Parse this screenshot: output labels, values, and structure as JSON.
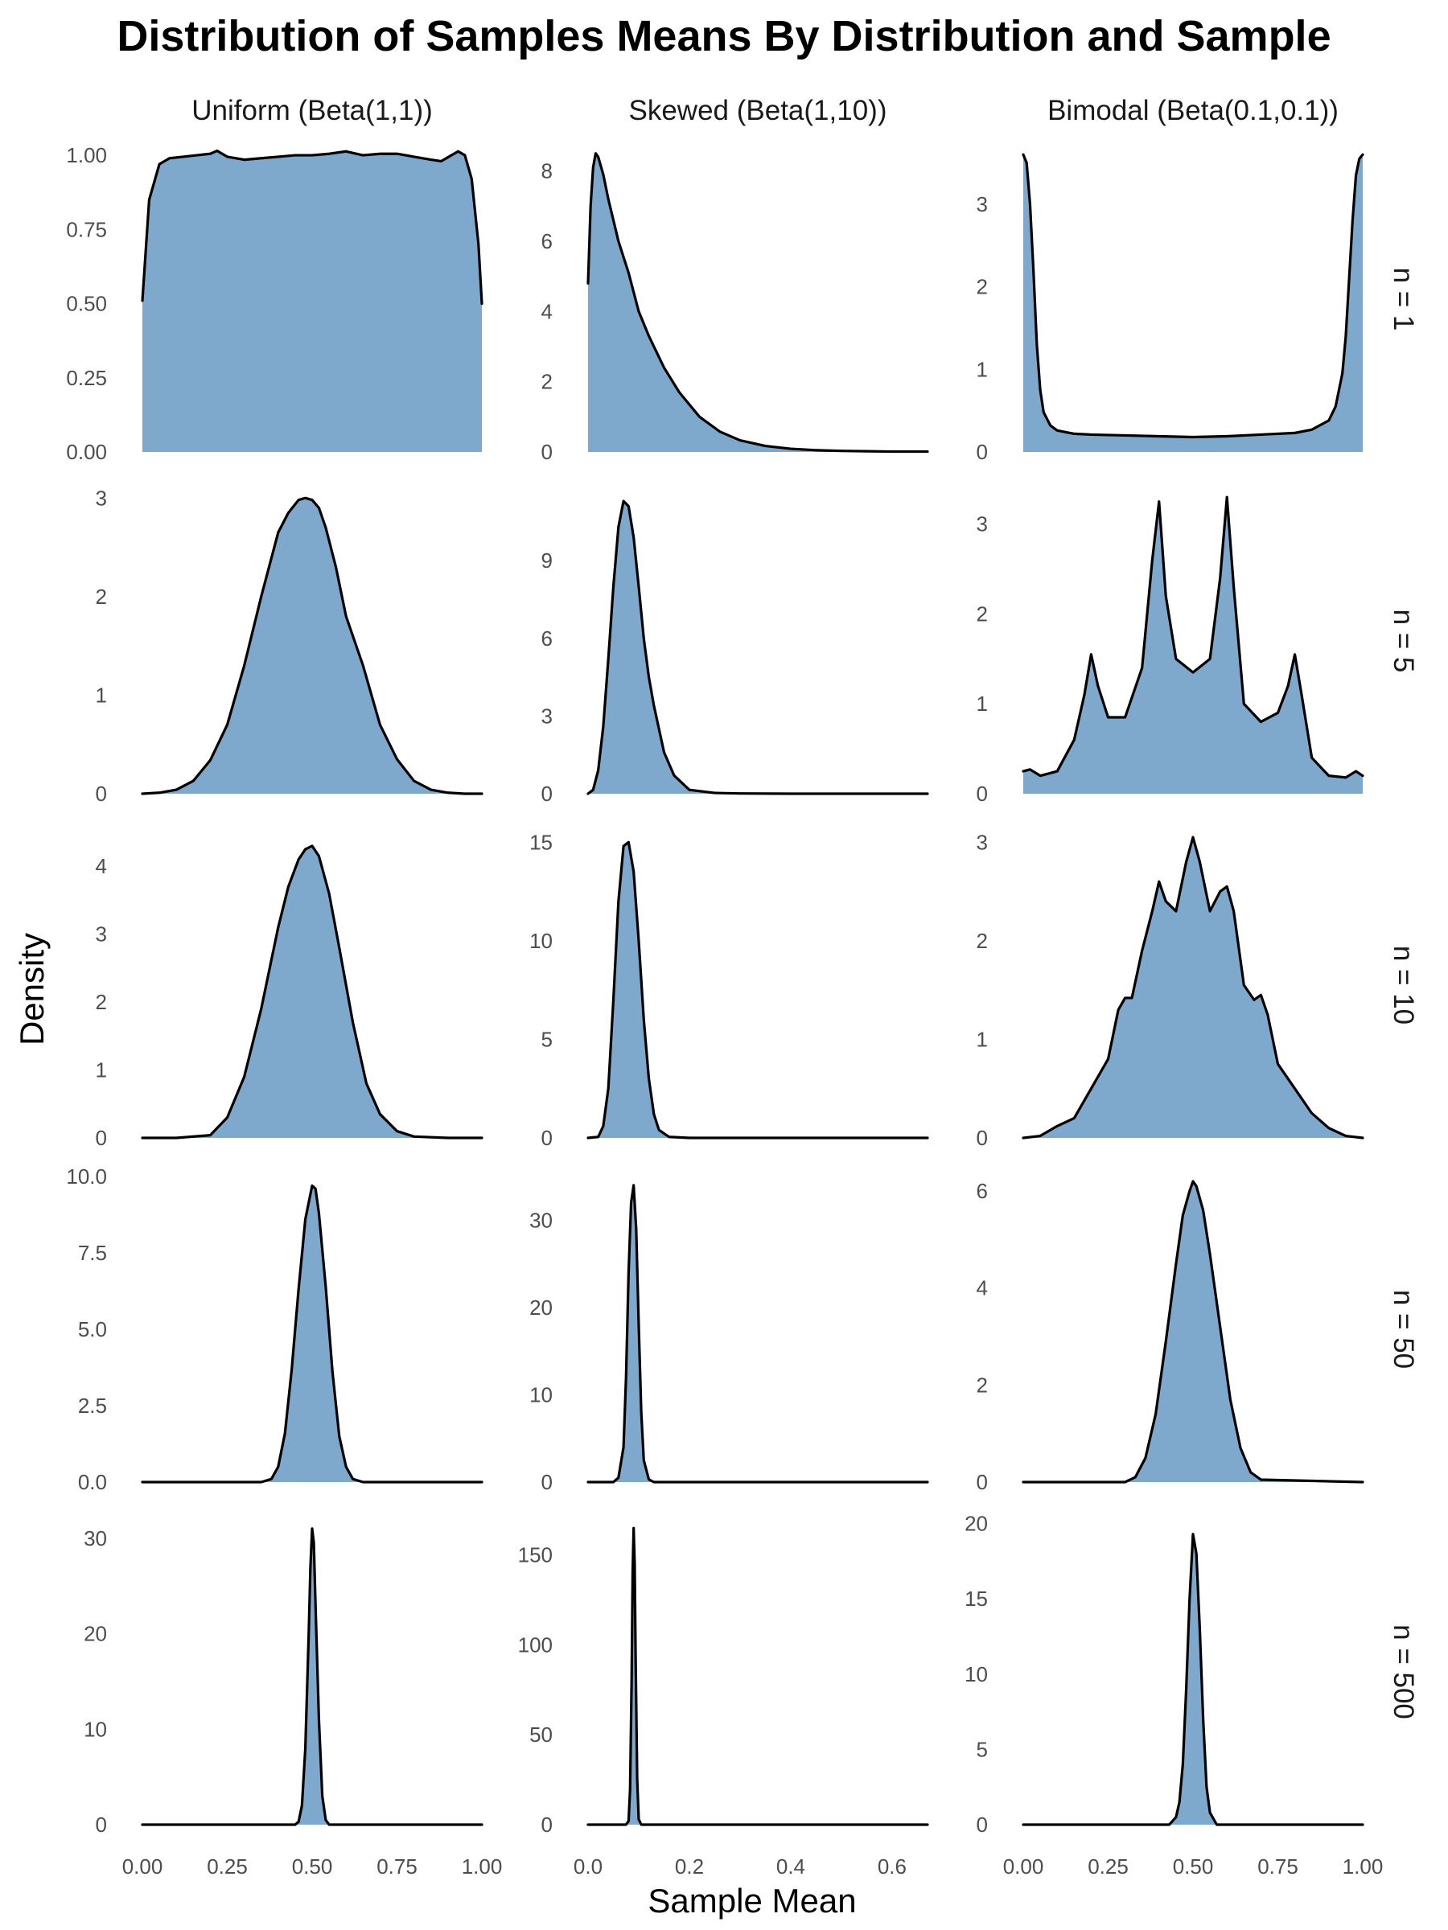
{
  "chart_data": {
    "type": "area",
    "title": "Distribution of Samples Means By Distribution and Sample",
    "xlabel": "Sample Mean",
    "ylabel": "Density",
    "fill_color": "#7EA8CC",
    "line_color": "#000000",
    "grid": false,
    "columns": [
      "Uniform (Beta(1,1))",
      "Skewed (Beta(1,10))",
      "Bimodal (Beta(0.1,0.1))"
    ],
    "rows": [
      "n = 1",
      "n = 5",
      "n = 10",
      "n = 50",
      "n = 500"
    ],
    "x_axes": [
      {
        "range": [
          0,
          1
        ],
        "ticks": [
          0,
          0.25,
          0.5,
          0.75,
          1
        ],
        "tick_labels": [
          "0.00",
          "0.25",
          "0.50",
          "0.75",
          "1.00"
        ]
      },
      {
        "range": [
          0,
          0.67
        ],
        "ticks": [
          0,
          0.2,
          0.4,
          0.6
        ],
        "tick_labels": [
          "0.0",
          "0.2",
          "0.4",
          "0.6"
        ]
      },
      {
        "range": [
          0,
          1
        ],
        "ticks": [
          0,
          0.25,
          0.5,
          0.75,
          1
        ],
        "tick_labels": [
          "0.00",
          "0.25",
          "0.50",
          "0.75",
          "1.00"
        ]
      }
    ],
    "panels": [
      {
        "row": 0,
        "col": 0,
        "ylim": [
          0,
          1.03
        ],
        "y_ticks": [
          0,
          0.25,
          0.5,
          0.75,
          1
        ],
        "y_tick_labels": [
          "0.00",
          "0.25",
          "0.50",
          "0.75",
          "1.00"
        ],
        "x": [
          0,
          0.02,
          0.05,
          0.08,
          0.12,
          0.16,
          0.2,
          0.22,
          0.25,
          0.3,
          0.35,
          0.4,
          0.45,
          0.5,
          0.55,
          0.6,
          0.65,
          0.7,
          0.75,
          0.8,
          0.85,
          0.88,
          0.91,
          0.93,
          0.95,
          0.97,
          0.99,
          1.0
        ],
        "y": [
          0.51,
          0.85,
          0.97,
          0.99,
          0.995,
          1.0,
          1.005,
          1.015,
          0.995,
          0.985,
          0.99,
          0.995,
          1.0,
          1.0,
          1.005,
          1.013,
          1.0,
          1.005,
          1.005,
          0.995,
          0.985,
          0.98,
          1.0,
          1.013,
          1.0,
          0.92,
          0.7,
          0.5
        ]
      },
      {
        "row": 0,
        "col": 1,
        "ylim": [
          0,
          8.7
        ],
        "y_ticks": [
          0,
          2,
          4,
          6,
          8
        ],
        "y_tick_labels": [
          "0",
          "2",
          "4",
          "6",
          "8"
        ],
        "x": [
          0,
          0.005,
          0.01,
          0.015,
          0.02,
          0.03,
          0.04,
          0.05,
          0.06,
          0.08,
          0.1,
          0.12,
          0.15,
          0.18,
          0.22,
          0.26,
          0.3,
          0.35,
          0.4,
          0.45,
          0.5,
          0.55,
          0.6,
          0.67
        ],
        "y": [
          4.8,
          7.0,
          8.1,
          8.5,
          8.4,
          7.9,
          7.2,
          6.6,
          6.0,
          5.1,
          4.0,
          3.3,
          2.4,
          1.7,
          1.0,
          0.58,
          0.33,
          0.17,
          0.09,
          0.05,
          0.03,
          0.02,
          0.01,
          0.01
        ]
      },
      {
        "row": 0,
        "col": 2,
        "ylim": [
          0,
          3.7
        ],
        "y_ticks": [
          0,
          1,
          2,
          3
        ],
        "y_tick_labels": [
          "0",
          "1",
          "2",
          "3"
        ],
        "x": [
          0,
          0.01,
          0.02,
          0.03,
          0.04,
          0.05,
          0.06,
          0.08,
          0.1,
          0.15,
          0.2,
          0.3,
          0.4,
          0.5,
          0.6,
          0.7,
          0.8,
          0.85,
          0.9,
          0.92,
          0.94,
          0.95,
          0.96,
          0.97,
          0.98,
          0.99,
          1.0
        ],
        "y": [
          3.6,
          3.5,
          3.0,
          2.2,
          1.3,
          0.75,
          0.48,
          0.32,
          0.26,
          0.22,
          0.21,
          0.2,
          0.19,
          0.18,
          0.19,
          0.21,
          0.23,
          0.27,
          0.38,
          0.55,
          0.95,
          1.4,
          2.1,
          2.8,
          3.35,
          3.55,
          3.6
        ]
      },
      {
        "row": 1,
        "col": 0,
        "ylim": [
          0,
          3.1
        ],
        "y_ticks": [
          0,
          1,
          2,
          3
        ],
        "y_tick_labels": [
          "0",
          "1",
          "2",
          "3"
        ],
        "x": [
          0,
          0.05,
          0.1,
          0.15,
          0.2,
          0.25,
          0.3,
          0.35,
          0.4,
          0.43,
          0.46,
          0.48,
          0.5,
          0.52,
          0.54,
          0.57,
          0.6,
          0.65,
          0.7,
          0.75,
          0.8,
          0.85,
          0.9,
          0.95,
          1.0
        ],
        "y": [
          0.0,
          0.01,
          0.04,
          0.13,
          0.34,
          0.7,
          1.3,
          2.0,
          2.65,
          2.85,
          2.98,
          3.0,
          2.98,
          2.9,
          2.7,
          2.3,
          1.8,
          1.3,
          0.7,
          0.35,
          0.13,
          0.04,
          0.01,
          0.0,
          0.0
        ]
      },
      {
        "row": 1,
        "col": 1,
        "ylim": [
          0,
          11.8
        ],
        "y_ticks": [
          0,
          3,
          6,
          9
        ],
        "y_tick_labels": [
          "0",
          "3",
          "6",
          "9"
        ],
        "x": [
          0,
          0.01,
          0.02,
          0.03,
          0.04,
          0.05,
          0.06,
          0.07,
          0.08,
          0.09,
          0.1,
          0.11,
          0.12,
          0.13,
          0.15,
          0.17,
          0.2,
          0.25,
          0.3,
          0.4,
          0.5,
          0.67
        ],
        "y": [
          0.0,
          0.15,
          0.9,
          2.6,
          5.2,
          8.0,
          10.3,
          11.3,
          11.1,
          9.9,
          8.0,
          6.0,
          4.5,
          3.4,
          1.6,
          0.7,
          0.15,
          0.03,
          0.01,
          0.0,
          0.0,
          0.0
        ]
      },
      {
        "row": 1,
        "col": 2,
        "ylim": [
          0,
          3.4
        ],
        "y_ticks": [
          0,
          1,
          2,
          3
        ],
        "y_tick_labels": [
          "0",
          "1",
          "2",
          "3"
        ],
        "x": [
          0,
          0.02,
          0.05,
          0.1,
          0.15,
          0.18,
          0.2,
          0.22,
          0.25,
          0.3,
          0.35,
          0.38,
          0.4,
          0.42,
          0.45,
          0.5,
          0.55,
          0.58,
          0.6,
          0.62,
          0.65,
          0.7,
          0.75,
          0.78,
          0.8,
          0.82,
          0.85,
          0.9,
          0.95,
          0.98,
          1.0
        ],
        "y": [
          0.25,
          0.27,
          0.2,
          0.25,
          0.6,
          1.1,
          1.55,
          1.2,
          0.85,
          0.85,
          1.4,
          2.6,
          3.25,
          2.2,
          1.5,
          1.35,
          1.5,
          2.4,
          3.3,
          2.3,
          1.0,
          0.8,
          0.9,
          1.2,
          1.55,
          1.1,
          0.4,
          0.2,
          0.18,
          0.25,
          0.2
        ]
      },
      {
        "row": 2,
        "col": 0,
        "ylim": [
          0,
          4.5
        ],
        "y_ticks": [
          0,
          1,
          2,
          3,
          4
        ],
        "y_tick_labels": [
          "0",
          "1",
          "2",
          "3",
          "4"
        ],
        "x": [
          0,
          0.1,
          0.2,
          0.25,
          0.3,
          0.35,
          0.4,
          0.43,
          0.46,
          0.48,
          0.5,
          0.52,
          0.55,
          0.58,
          0.62,
          0.66,
          0.7,
          0.75,
          0.8,
          0.9,
          1.0
        ],
        "y": [
          0.0,
          0.0,
          0.04,
          0.3,
          0.9,
          1.9,
          3.1,
          3.7,
          4.1,
          4.25,
          4.3,
          4.15,
          3.6,
          2.8,
          1.7,
          0.8,
          0.35,
          0.1,
          0.02,
          0.0,
          0.0
        ]
      },
      {
        "row": 2,
        "col": 1,
        "ylim": [
          0,
          15.5
        ],
        "y_ticks": [
          0,
          5,
          10,
          15
        ],
        "y_tick_labels": [
          "0",
          "5",
          "10",
          "15"
        ],
        "x": [
          0,
          0.02,
          0.03,
          0.04,
          0.05,
          0.06,
          0.07,
          0.08,
          0.09,
          0.1,
          0.11,
          0.12,
          0.13,
          0.14,
          0.16,
          0.2,
          0.3,
          0.67
        ],
        "y": [
          0.0,
          0.05,
          0.6,
          2.5,
          7.0,
          12.0,
          14.8,
          15.0,
          13.5,
          10.0,
          6.0,
          3.0,
          1.2,
          0.4,
          0.05,
          0.0,
          0.0,
          0.0
        ]
      },
      {
        "row": 2,
        "col": 2,
        "ylim": [
          0,
          3.1
        ],
        "y_ticks": [
          0,
          1,
          2,
          3
        ],
        "y_tick_labels": [
          "0",
          "1",
          "2",
          "3"
        ],
        "x": [
          0,
          0.05,
          0.1,
          0.15,
          0.2,
          0.25,
          0.28,
          0.3,
          0.32,
          0.35,
          0.38,
          0.4,
          0.42,
          0.45,
          0.48,
          0.5,
          0.52,
          0.55,
          0.58,
          0.6,
          0.62,
          0.65,
          0.68,
          0.7,
          0.72,
          0.75,
          0.8,
          0.85,
          0.9,
          0.95,
          1.0
        ],
        "y": [
          0.0,
          0.02,
          0.12,
          0.2,
          0.5,
          0.8,
          1.3,
          1.42,
          1.42,
          1.9,
          2.3,
          2.6,
          2.4,
          2.3,
          2.8,
          3.05,
          2.8,
          2.3,
          2.5,
          2.55,
          2.3,
          1.55,
          1.4,
          1.45,
          1.25,
          0.75,
          0.5,
          0.25,
          0.1,
          0.02,
          0.0
        ]
      },
      {
        "row": 3,
        "col": 0,
        "ylim": [
          0,
          10
        ],
        "y_ticks": [
          0,
          2.5,
          5,
          7.5,
          10
        ],
        "y_tick_labels": [
          "0.0",
          "2.5",
          "5.0",
          "7.5",
          "10.0"
        ],
        "x": [
          0,
          0.35,
          0.38,
          0.4,
          0.42,
          0.44,
          0.46,
          0.48,
          0.5,
          0.51,
          0.52,
          0.54,
          0.56,
          0.58,
          0.6,
          0.62,
          0.65,
          1.0
        ],
        "y": [
          0.0,
          0.0,
          0.1,
          0.5,
          1.6,
          3.7,
          6.3,
          8.6,
          9.7,
          9.6,
          8.8,
          6.4,
          3.6,
          1.5,
          0.5,
          0.1,
          0.0,
          0.0
        ]
      },
      {
        "row": 3,
        "col": 1,
        "ylim": [
          0,
          35
        ],
        "y_ticks": [
          0,
          10,
          20,
          30
        ],
        "y_tick_labels": [
          "0",
          "10",
          "20",
          "30"
        ],
        "x": [
          0,
          0.05,
          0.06,
          0.07,
          0.075,
          0.08,
          0.085,
          0.09,
          0.095,
          0.1,
          0.105,
          0.11,
          0.12,
          0.13,
          0.67
        ],
        "y": [
          0.0,
          0.0,
          0.5,
          4.0,
          12.0,
          24.0,
          32.0,
          34.0,
          29.0,
          18.0,
          8.0,
          2.5,
          0.3,
          0.0,
          0.0
        ]
      },
      {
        "row": 3,
        "col": 2,
        "ylim": [
          0,
          6.3
        ],
        "y_ticks": [
          0,
          2,
          4,
          6
        ],
        "y_tick_labels": [
          "0",
          "2",
          "4",
          "6"
        ],
        "x": [
          0,
          0.3,
          0.33,
          0.36,
          0.39,
          0.42,
          0.45,
          0.47,
          0.49,
          0.5,
          0.51,
          0.53,
          0.55,
          0.58,
          0.61,
          0.64,
          0.67,
          0.7,
          1.0
        ],
        "y": [
          0.0,
          0.0,
          0.1,
          0.5,
          1.4,
          2.9,
          4.5,
          5.5,
          6.0,
          6.2,
          6.1,
          5.6,
          4.7,
          3.2,
          1.7,
          0.7,
          0.2,
          0.05,
          0.0
        ]
      },
      {
        "row": 4,
        "col": 0,
        "ylim": [
          0,
          32
        ],
        "y_ticks": [
          0,
          10,
          20,
          30
        ],
        "y_tick_labels": [
          "0",
          "10",
          "20",
          "30"
        ],
        "x": [
          0,
          0.45,
          0.46,
          0.47,
          0.48,
          0.49,
          0.495,
          0.5,
          0.505,
          0.51,
          0.52,
          0.53,
          0.54,
          0.55,
          1.0
        ],
        "y": [
          0.0,
          0.0,
          0.3,
          2.0,
          8.0,
          20.0,
          27.0,
          31.0,
          29.5,
          23.0,
          11.0,
          3.0,
          0.5,
          0.0,
          0.0
        ]
      },
      {
        "row": 4,
        "col": 1,
        "ylim": [
          0,
          170
        ],
        "y_ticks": [
          0,
          50,
          100,
          150
        ],
        "y_tick_labels": [
          "0",
          "50",
          "100",
          "150"
        ],
        "x": [
          0,
          0.075,
          0.08,
          0.083,
          0.086,
          0.088,
          0.09,
          0.092,
          0.094,
          0.097,
          0.1,
          0.105,
          0.67
        ],
        "y": [
          0.0,
          0.0,
          2.0,
          20.0,
          80.0,
          140.0,
          165.0,
          145.0,
          90.0,
          25.0,
          3.0,
          0.0,
          0.0
        ]
      },
      {
        "row": 4,
        "col": 2,
        "ylim": [
          0,
          20.3
        ],
        "y_ticks": [
          0,
          5,
          10,
          15,
          20
        ],
        "y_tick_labels": [
          "0",
          "5",
          "10",
          "15",
          "20"
        ],
        "x": [
          0,
          0.43,
          0.45,
          0.46,
          0.47,
          0.48,
          0.49,
          0.5,
          0.51,
          0.52,
          0.53,
          0.54,
          0.55,
          0.57,
          1.0
        ],
        "y": [
          0.0,
          0.0,
          0.5,
          1.5,
          4.0,
          9.0,
          15.0,
          19.3,
          18.0,
          13.0,
          7.0,
          2.5,
          0.8,
          0.0,
          0.0
        ]
      }
    ]
  }
}
